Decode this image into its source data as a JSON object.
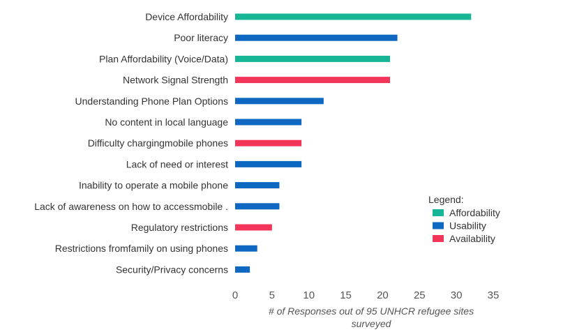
{
  "chart_data": {
    "type": "bar",
    "orientation": "horizontal",
    "categories": [
      "Device Affordability",
      "Poor literacy",
      "Plan Affordability (Voice/Data)",
      "Network Signal Strength",
      "Understanding Phone Plan Options",
      "No content in local language",
      "Difficulty chargingmobile phones",
      "Lack of need or interest",
      "Inability to operate a mobile phone",
      "Lack of awareness on how to accessmobile .",
      "Regulatory restrictions",
      "Restrictions fromfamily on using phones",
      "Security/Privacy concerns"
    ],
    "values": [
      32,
      22,
      21,
      21,
      12,
      9,
      9,
      9,
      6,
      6,
      5,
      3,
      2
    ],
    "groups": [
      "Affordability",
      "Usability",
      "Affordability",
      "Availability",
      "Usability",
      "Usability",
      "Availability",
      "Usability",
      "Usability",
      "Usability",
      "Availability",
      "Usability",
      "Usability"
    ],
    "xlabel_lines": [
      "# of Responses out of 95 UNHCR refugee sites",
      "surveyed"
    ],
    "xlim": [
      0,
      35
    ],
    "xticks": [
      "0",
      "5",
      "10",
      "15",
      "20",
      "25",
      "30",
      "35"
    ],
    "grid": false,
    "legend": {
      "title": "Legend:",
      "placement": "right",
      "items": [
        {
          "name": "Affordability",
          "color": "#16b596"
        },
        {
          "name": "Usability",
          "color": "#0e67c1"
        },
        {
          "name": "Availability",
          "color": "#f4355a"
        }
      ]
    }
  }
}
